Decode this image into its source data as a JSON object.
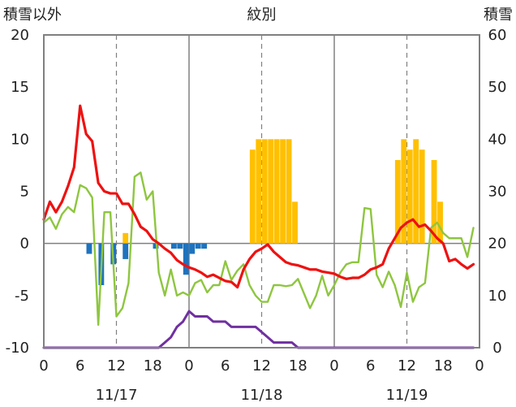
{
  "chart_data": {
    "type": "bar+line",
    "title": "紋別",
    "left_axis": {
      "label": "積雪以外",
      "ylim": [
        -10,
        20
      ],
      "ticks": [
        "20",
        "15",
        "10",
        "5",
        "0",
        "-5",
        "-10"
      ]
    },
    "right_axis": {
      "label": "積雪",
      "ylim": [
        0,
        60
      ],
      "ticks": [
        "60",
        "50",
        "40",
        "30",
        "20",
        "10",
        "0"
      ]
    },
    "x_hour_labels": [
      "0",
      "6",
      "12",
      "18",
      "0",
      "6",
      "12",
      "18",
      "0",
      "6",
      "12",
      "18",
      "0"
    ],
    "date_labels": [
      "11/17",
      "11/18",
      "11/19"
    ],
    "grid": "dashed at 12h, solid at day boundaries",
    "colors": {
      "temperature": "#ee1111",
      "wind": "#8ec63f",
      "snow_depth": "#7030a0",
      "precipitation": "#ffc000",
      "sunshine": "#1e73be"
    },
    "series": [
      {
        "key": "temperature",
        "axis": "left",
        "kind": "line",
        "values": [
          2.3,
          4.0,
          3.0,
          4.0,
          5.5,
          7.3,
          13.2,
          10.5,
          9.8,
          5.8,
          5.0,
          4.8,
          4.8,
          3.8,
          3.8,
          2.8,
          1.6,
          1.2,
          0.4,
          0.0,
          -0.5,
          -0.9,
          -1.6,
          -2.0,
          -2.3,
          -2.5,
          -2.8,
          -3.2,
          -3.0,
          -3.3,
          -3.6,
          -3.7,
          -4.2,
          -2.5,
          -1.5,
          -0.8,
          -0.5,
          -0.1,
          -0.8,
          -1.3,
          -1.8,
          -2.0,
          -2.1,
          -2.3,
          -2.5,
          -2.5,
          -2.7,
          -2.8,
          -2.9,
          -3.2,
          -3.4,
          -3.3,
          -3.3,
          -3.0,
          -2.5,
          -2.3,
          -2.0,
          -0.5,
          0.5,
          1.5,
          2.0,
          2.3,
          1.6,
          1.8,
          1.2,
          0.5,
          0.0,
          -1.7,
          -1.5,
          -2.0,
          -2.4,
          -2.0
        ]
      },
      {
        "key": "wind",
        "axis": "left",
        "kind": "line",
        "values": [
          2.0,
          2.5,
          1.4,
          2.8,
          3.5,
          3.0,
          5.6,
          5.3,
          4.4,
          -7.8,
          3.0,
          3.0,
          -7.0,
          -6.2,
          -3.8,
          6.4,
          6.8,
          4.2,
          5.0,
          -2.8,
          -5.0,
          -2.5,
          -5.0,
          -4.7,
          -5.0,
          -3.8,
          -3.5,
          -4.7,
          -4.0,
          -4.0,
          -1.7,
          -3.5,
          -2.6,
          -2.0,
          -4.0,
          -5.0,
          -5.6,
          -5.6,
          -4.0,
          -4.0,
          -4.1,
          -4.0,
          -3.4,
          -4.8,
          -6.2,
          -5.0,
          -3.1,
          -5.0,
          -4.0,
          -2.8,
          -2.0,
          -1.8,
          -1.8,
          3.4,
          3.3,
          -3.0,
          -4.2,
          -2.7,
          -4.0,
          -6.1,
          -2.8,
          -5.6,
          -4.2,
          -3.8,
          1.5,
          2.0,
          1.0,
          0.5,
          0.5,
          0.5,
          -1.3,
          1.5
        ]
      },
      {
        "key": "snow_depth",
        "axis": "right",
        "kind": "line",
        "values": [
          0,
          0,
          0,
          0,
          0,
          0,
          0,
          0,
          0,
          0,
          0,
          0,
          0,
          0,
          0,
          0,
          0,
          0,
          0,
          0,
          1,
          2,
          4,
          5,
          7,
          6,
          6,
          6,
          5,
          5,
          5,
          4,
          4,
          4,
          4,
          4,
          3,
          2,
          1,
          1,
          1,
          1,
          0,
          0,
          0,
          0,
          0,
          0,
          0,
          0,
          0,
          0,
          0,
          0,
          0,
          0,
          0,
          0,
          0,
          0,
          0,
          0,
          0,
          0,
          0,
          0,
          0,
          0,
          0,
          0,
          0,
          0
        ]
      },
      {
        "key": "precipitation",
        "axis": "left",
        "kind": "bar",
        "values": [
          0,
          0,
          0,
          0,
          0,
          0,
          0,
          0,
          0,
          0,
          0,
          0,
          0,
          1.0,
          0,
          0,
          0,
          0,
          0,
          0,
          0,
          0,
          0,
          0,
          0,
          0,
          0,
          0,
          0,
          0,
          0,
          0,
          0,
          0,
          9.0,
          10.0,
          10.0,
          10.0,
          10.0,
          10.0,
          10.0,
          4.0,
          0,
          0,
          0,
          0,
          0,
          0,
          0,
          0,
          0,
          0,
          0,
          0,
          0,
          0,
          0,
          0,
          8.0,
          10.0,
          9.0,
          10.0,
          9.0,
          0,
          8.0,
          4.0,
          0,
          0,
          0,
          0,
          0,
          0
        ]
      },
      {
        "key": "sunshine",
        "axis": "left",
        "kind": "bar",
        "values": [
          0,
          0,
          0,
          0,
          0,
          0,
          0,
          -1.0,
          0,
          -4.0,
          0,
          -2.0,
          0,
          -1.5,
          0,
          0,
          0,
          0,
          -0.5,
          0,
          0,
          -0.5,
          -0.5,
          -3.0,
          -1.0,
          -0.5,
          -0.5,
          0,
          0,
          0,
          0,
          0,
          0,
          0,
          0,
          0,
          0,
          0,
          0,
          0,
          0,
          0,
          0,
          0,
          0,
          0,
          0,
          0,
          0,
          0,
          0,
          0,
          0,
          0,
          0,
          0,
          0,
          0,
          0,
          0,
          0,
          0,
          0,
          0,
          0,
          0,
          0,
          0,
          0,
          0,
          0,
          0
        ]
      }
    ]
  }
}
